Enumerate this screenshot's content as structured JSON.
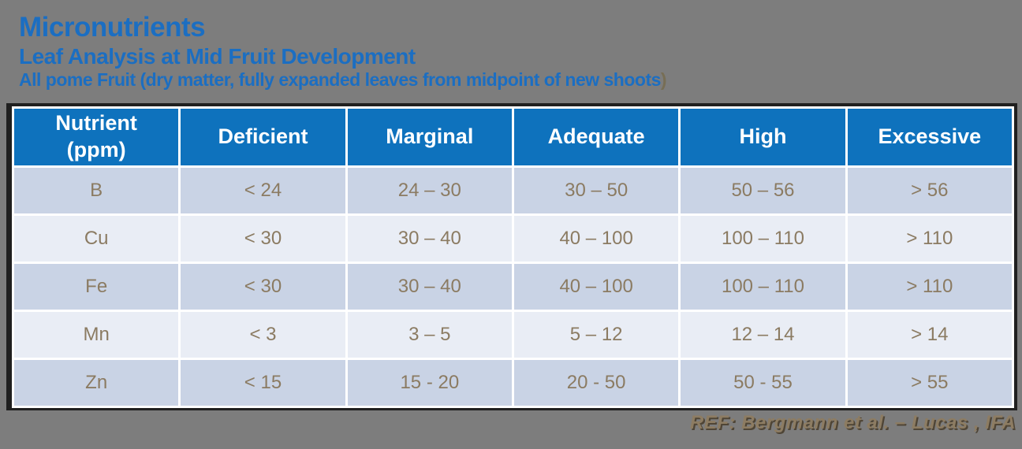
{
  "header": {
    "title": "Micronutrients",
    "subtitle": "Leaf Analysis at Mid Fruit Development",
    "subtitle_detail": "All pome Fruit (dry matter, fully expanded leaves from midpoint of new shoots",
    "subtitle_detail_paren": ")"
  },
  "table": {
    "headers": [
      "Nutrient\n(ppm)",
      "Deficient",
      "Marginal",
      "Adequate",
      "High",
      "Excessive"
    ],
    "rows": [
      {
        "nutrient": "B",
        "values": [
          "< 24",
          "24 – 30",
          "30 – 50",
          "50 – 56",
          "> 56"
        ]
      },
      {
        "nutrient": "Cu",
        "values": [
          "< 30",
          "30 – 40",
          "40 – 100",
          "100 – 110",
          "> 110"
        ]
      },
      {
        "nutrient": "Fe",
        "values": [
          "< 30",
          "30 – 40",
          "40 – 100",
          "100 – 110",
          "> 110"
        ]
      },
      {
        "nutrient": "Mn",
        "values": [
          "< 3",
          "3 – 5",
          "5 – 12",
          "12 – 14",
          "> 14"
        ]
      },
      {
        "nutrient": "Zn",
        "values": [
          "< 15",
          "15 - 20",
          "20 - 50",
          "50 - 55",
          "> 55"
        ]
      }
    ]
  },
  "footer": {
    "reference": "REF: Bergmann et al. – Lucas , IFA"
  },
  "colors": {
    "background": "#7d7d7d",
    "title_blue": "#1b6ec2",
    "header_blue": "#0e72bd",
    "row_dark": "#c9d3e5",
    "row_light": "#e9edf5",
    "cell_text": "#8b7b62",
    "reference_text": "#8d7c62"
  }
}
